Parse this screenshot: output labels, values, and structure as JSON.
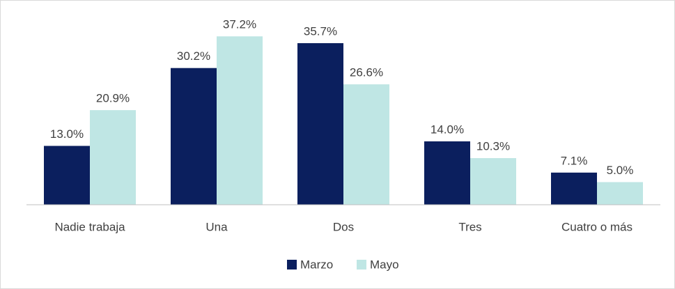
{
  "chart_data": {
    "type": "bar",
    "categories": [
      "Nadie trabaja",
      "Una",
      "Dos",
      "Tres",
      "Cuatro o más"
    ],
    "series": [
      {
        "name": "Marzo",
        "color": "#0b1f5e",
        "values": [
          13.0,
          30.2,
          35.7,
          14.0,
          7.1
        ],
        "value_labels": [
          "13.0%",
          "30.2%",
          "35.7%",
          "14.0%",
          "7.1%"
        ]
      },
      {
        "name": "Mayo",
        "color": "#bfe6e4",
        "values": [
          20.9,
          37.2,
          26.6,
          10.3,
          5.0
        ],
        "value_labels": [
          "20.9%",
          "37.2%",
          "26.6%",
          "10.3%",
          "5.0%"
        ]
      }
    ],
    "ylim": [
      0,
      40
    ],
    "legend": "bottom"
  }
}
